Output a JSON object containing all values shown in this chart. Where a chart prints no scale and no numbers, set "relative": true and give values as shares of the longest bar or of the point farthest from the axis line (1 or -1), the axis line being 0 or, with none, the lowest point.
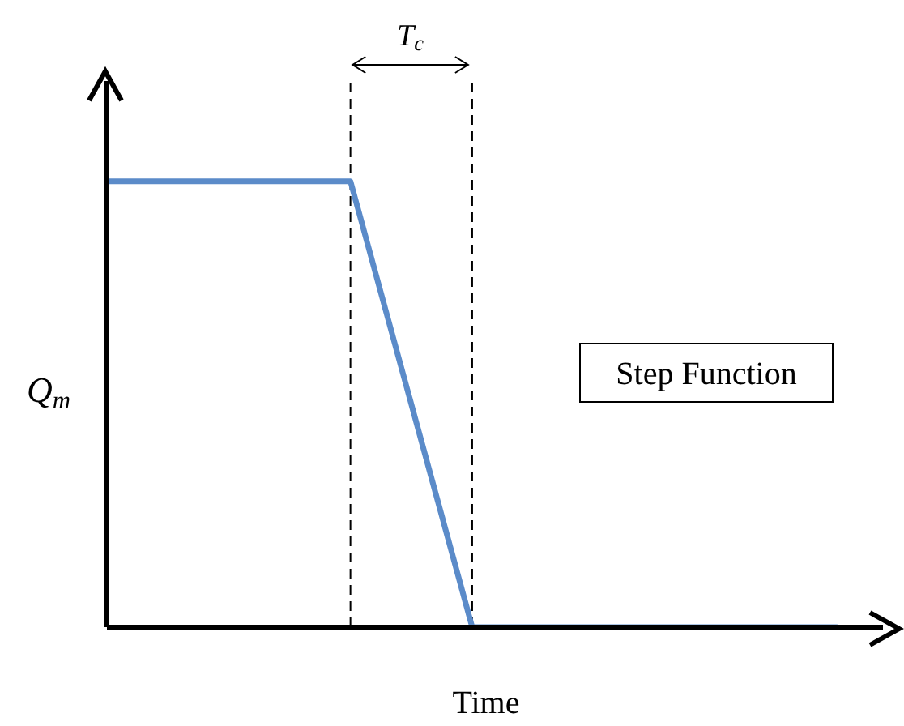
{
  "chart_data": {
    "type": "line",
    "relative": true,
    "categories": [
      null,
      null,
      null,
      null,
      null,
      null,
      null
    ],
    "series": [
      {
        "color": "#5b8bc9",
        "values": [
          1,
          1,
          1,
          0,
          0,
          0,
          0
        ]
      }
    ],
    "xlabel": "Time",
    "ylabel": "Q$_{m}$",
    "annotations": [
      "T$_{c}$",
      "Step Function"
    ],
    "grid": false,
    "legend": false,
    "marker": "none",
    "line_style": "solid"
  }
}
